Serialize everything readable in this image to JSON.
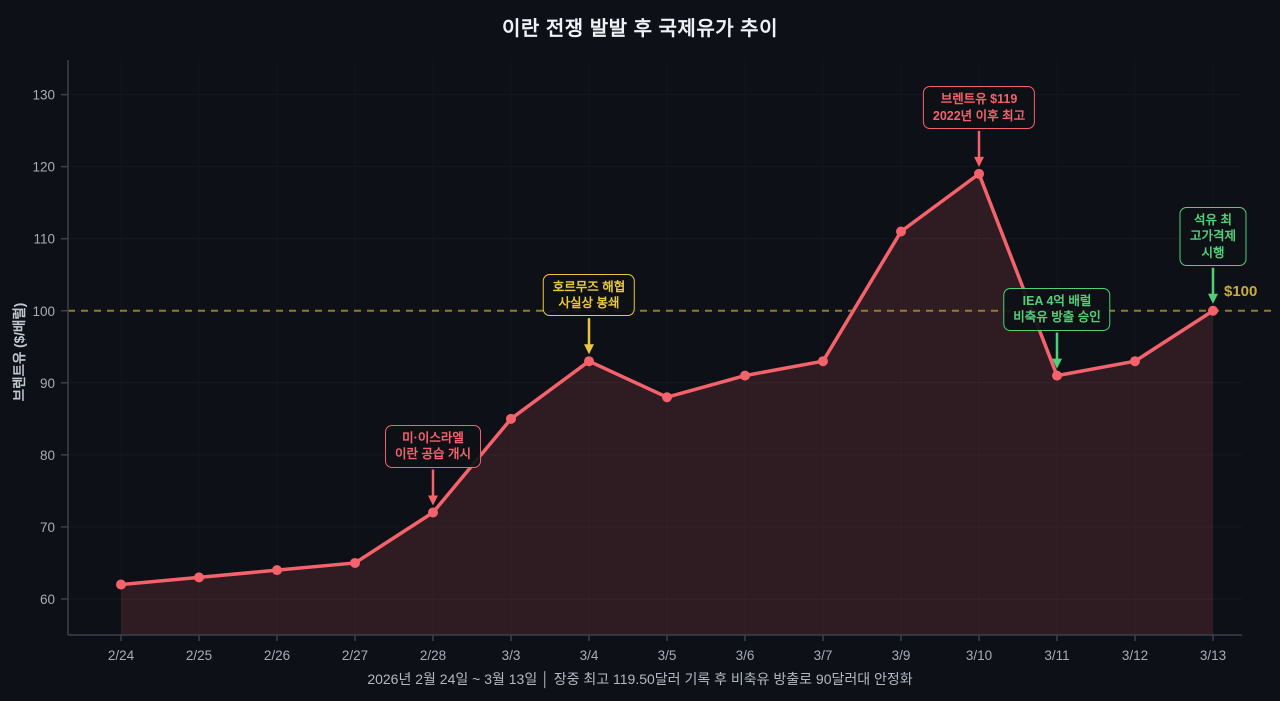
{
  "title": "이란 전쟁 발발 후 국제유가 추이",
  "caption": "2026년 2월 24일 ~ 3월 13일 │ 장중 최고 119.50달러 기록 후 비축유 방출로 90달러대 안정화",
  "chart_data": {
    "type": "line",
    "series_name": "브렌트유",
    "x": [
      "2/24",
      "2/25",
      "2/26",
      "2/27",
      "2/28",
      "3/3",
      "3/4",
      "3/5",
      "3/6",
      "3/7",
      "3/9",
      "3/10",
      "3/11",
      "3/12",
      "3/13"
    ],
    "values": [
      62,
      63,
      64,
      65,
      72,
      85,
      93,
      88,
      91,
      93,
      111,
      119,
      91,
      93,
      100
    ],
    "ylabel": "브렌트유 ($/배럴)",
    "yticks": [
      60,
      70,
      80,
      90,
      100,
      110,
      120,
      130
    ],
    "ylim": [
      55,
      134.8
    ],
    "area": true,
    "grid": true,
    "legend": "none",
    "ref_line": {
      "value": 100,
      "label": "$100"
    },
    "annotations": [
      {
        "text": "미·이스라엘\n이란 공습 개시",
        "color": "red",
        "target": "2/28"
      },
      {
        "text": "호르무즈 해협\n사실상 봉쇄",
        "color": "yellow",
        "target": "3/4"
      },
      {
        "text": "브렌트유 $119\n2022년 이후 최고",
        "color": "red",
        "target": "3/10"
      },
      {
        "text": "IEA 4억 배럴\n비축유 방출 승인",
        "color": "green",
        "target": "3/11"
      },
      {
        "text": "석유 최고가격제\n시행",
        "color": "green",
        "target": "3/13"
      }
    ],
    "colors": {
      "line": "#f4626c",
      "area": "rgba(244,98,108,0.15)",
      "red": "#f4626c",
      "yellow": "#e9c73f",
      "green": "#53cf7a",
      "ref_line": "#8f7c2b",
      "ref_label": "#c8ad3b",
      "axis": "#3c414c",
      "tick_text": "#a6acb8"
    }
  }
}
